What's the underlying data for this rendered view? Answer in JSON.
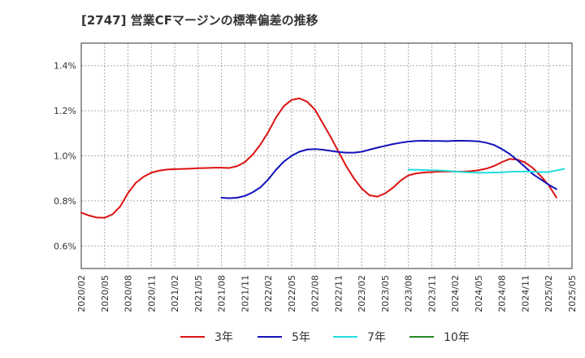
{
  "chart_data": {
    "type": "line",
    "title": "[2747]  営業CFマージンの標準偏差の推移",
    "xlabel": "",
    "ylabel": "",
    "y_tick_labels": [
      "0.6%",
      "0.8%",
      "1.0%",
      "1.2%",
      "1.4%"
    ],
    "y_tick_values": [
      0.6,
      0.8,
      1.0,
      1.2,
      1.4
    ],
    "ylim": [
      0.5,
      1.5
    ],
    "x_tick_labels": [
      "2020/02",
      "2020/05",
      "2020/08",
      "2020/11",
      "2021/02",
      "2021/05",
      "2021/08",
      "2021/11",
      "2022/02",
      "2022/05",
      "2022/08",
      "2022/11",
      "2023/02",
      "2023/05",
      "2023/08",
      "2023/11",
      "2024/02",
      "2024/05",
      "2024/08",
      "2024/11",
      "2025/02",
      "2025/05"
    ],
    "x_start": "2020/02",
    "x_end": "2025/05",
    "grid": true,
    "legend_position": "bottom",
    "series": [
      {
        "name": "3年",
        "color": "#dd1111",
        "start": "2020/02",
        "values": [
          0.748,
          0.735,
          0.726,
          0.725,
          0.74,
          0.775,
          0.835,
          0.88,
          0.907,
          0.925,
          0.934,
          0.939,
          0.941,
          0.942,
          0.943,
          0.945,
          0.946,
          0.947,
          0.947,
          0.946,
          0.954,
          0.972,
          1.005,
          1.05,
          1.105,
          1.17,
          1.22,
          1.248,
          1.255,
          1.24,
          1.205,
          1.145,
          1.085,
          1.02,
          0.955,
          0.9,
          0.855,
          0.825,
          0.819,
          0.833,
          0.858,
          0.89,
          0.913,
          0.922,
          0.926,
          0.928,
          0.93,
          0.93,
          0.93,
          0.93,
          0.932,
          0.936,
          0.943,
          0.955,
          0.972,
          0.986,
          0.983,
          0.97,
          0.945,
          0.91,
          0.87,
          0.815
        ]
      },
      {
        "name": "5年",
        "color": "#1111bb",
        "start": "2021/08",
        "values": [
          0.814,
          0.812,
          0.814,
          0.822,
          0.838,
          0.86,
          0.895,
          0.938,
          0.974,
          1.0,
          1.018,
          1.028,
          1.03,
          1.027,
          1.022,
          1.017,
          1.014,
          1.014,
          1.018,
          1.027,
          1.036,
          1.044,
          1.052,
          1.058,
          1.063,
          1.066,
          1.067,
          1.066,
          1.066,
          1.065,
          1.067,
          1.067,
          1.066,
          1.064,
          1.058,
          1.048,
          1.03,
          1.008,
          0.98,
          0.95,
          0.918,
          0.895,
          0.872,
          0.852
        ]
      },
      {
        "name": "7年",
        "color": "#22dddd",
        "start": "2023/08",
        "values": [
          0.938,
          0.938,
          0.937,
          0.936,
          0.935,
          0.933,
          0.93,
          0.928,
          0.926,
          0.925,
          0.925,
          0.926,
          0.927,
          0.929,
          0.93,
          0.93,
          0.929,
          0.928,
          0.928,
          0.935,
          0.942
        ]
      },
      {
        "name": "10年",
        "color": "#228822",
        "start": "2025/05",
        "values": []
      }
    ]
  }
}
